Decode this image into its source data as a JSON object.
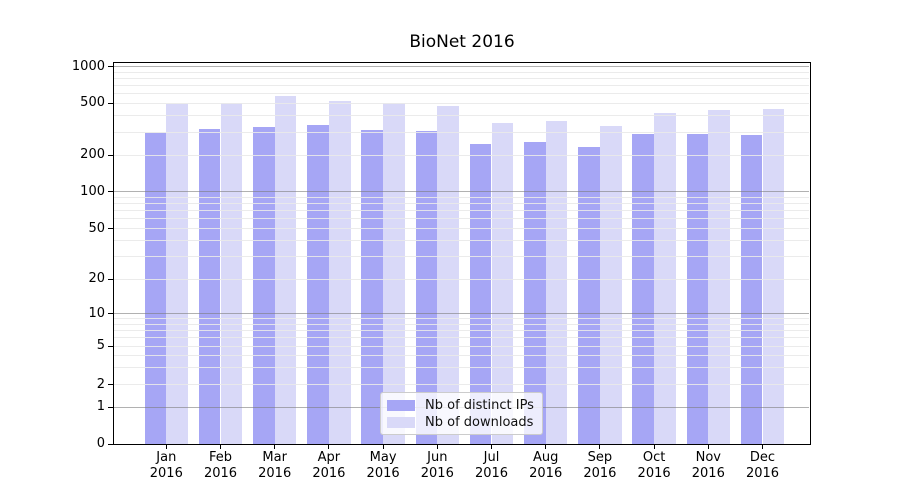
{
  "chart_data": {
    "type": "bar",
    "title": "BioNet 2016",
    "yscale": "symlog",
    "categories": [
      "Jan",
      "Feb",
      "Mar",
      "Apr",
      "May",
      "Jun",
      "Jul",
      "Aug",
      "Sep",
      "Oct",
      "Nov",
      "Dec"
    ],
    "category_year": "2016",
    "series": [
      {
        "name": "Nb of distinct IPs",
        "color": "#a6a6f5",
        "values": [
          295,
          315,
          330,
          340,
          312,
          308,
          242,
          250,
          232,
          290,
          291,
          284
        ]
      },
      {
        "name": "Nb of downloads",
        "color": "#d9d9f8",
        "values": [
          495,
          505,
          575,
          525,
          500,
          473,
          352,
          368,
          337,
          418,
          445,
          456
        ]
      }
    ],
    "yticks": [
      0,
      1,
      2,
      5,
      10,
      20,
      50,
      100,
      200,
      500,
      1000
    ],
    "ytick_labels": [
      "0",
      "1",
      "2",
      "5",
      "10",
      "20",
      "50",
      "100",
      "200",
      "500",
      "1000"
    ],
    "ylim": [
      0,
      1100
    ],
    "xlabel": "",
    "ylabel": "",
    "grid": {
      "show_major": true,
      "show_minor": true,
      "major_color": "#b0b0b0",
      "minor_color": "#ececec",
      "grid_on_top_of_bars": true
    },
    "legend": {
      "position": "lower center",
      "entries": [
        "Nb of distinct IPs",
        "Nb of downloads"
      ]
    }
  },
  "colors": {
    "background": "#ffffff",
    "axis": "#000000",
    "text": "#000000",
    "bar_dark": "#a6a6f5",
    "bar_light": "#d9d9f8"
  }
}
